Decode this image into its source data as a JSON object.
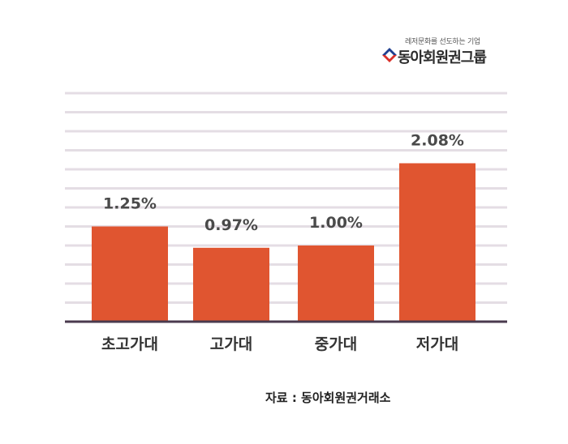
{
  "logo": {
    "tagline": "레저문화를 선도하는 기업",
    "name": "동아회원권그룹",
    "mark_colors": [
      "#1f3f8f",
      "#d9302a"
    ]
  },
  "chart_data": {
    "type": "bar",
    "categories": [
      "초고가대",
      "고가대",
      "중가대",
      "저가대"
    ],
    "values": [
      1.25,
      0.97,
      1.0,
      2.08
    ],
    "value_labels": [
      "1.25%",
      "0.97%",
      "1.00%",
      "2.08%"
    ],
    "title": "",
    "xlabel": "",
    "ylabel": "",
    "ylim": [
      0,
      3.0
    ],
    "grid": true,
    "bar_color": "#e05530",
    "grid_color": "#e4dde4",
    "axis_color": "#4a3a4e"
  },
  "source": "자료 : 동아회원권거래소"
}
